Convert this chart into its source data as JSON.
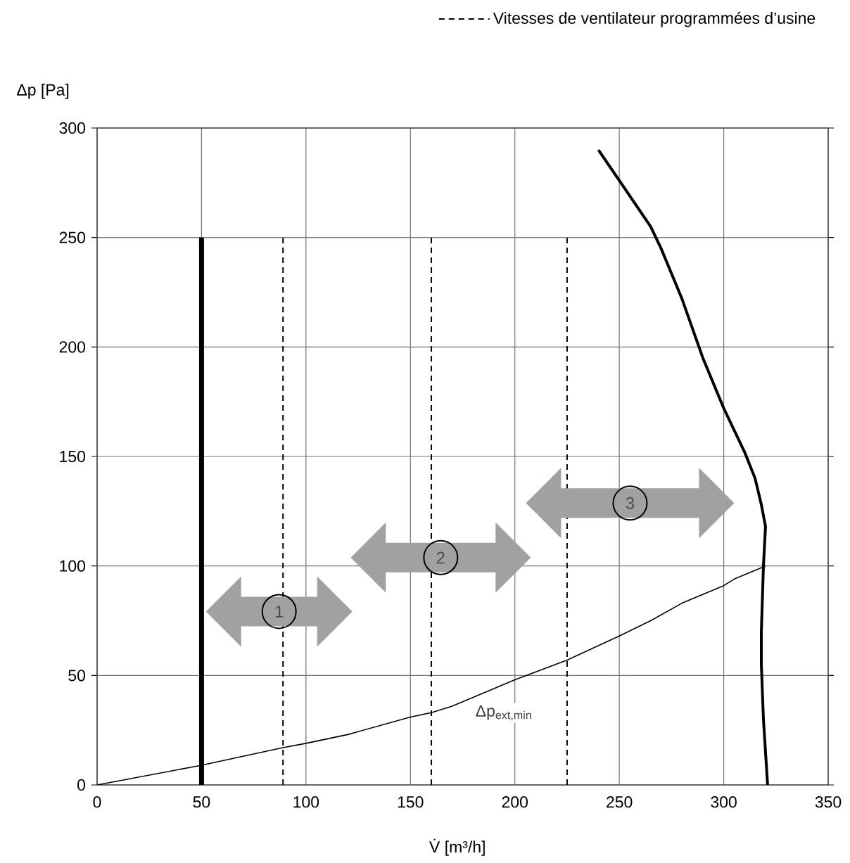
{
  "chart_data": {
    "type": "line",
    "xlabel": "V̇ [m³/h]",
    "ylabel": "Δp [Pa]",
    "xlim": [
      0,
      350
    ],
    "ylim": [
      0,
      300
    ],
    "xticks": [
      0,
      50,
      100,
      150,
      200,
      250,
      300,
      350
    ],
    "yticks": [
      0,
      50,
      100,
      150,
      200,
      250,
      300
    ],
    "grid": true,
    "legend": "top right",
    "annotations": [
      "1",
      "2",
      "3"
    ],
    "series": [
      {
        "color": "#000000",
        "x": [
          50,
          50
        ],
        "values": [
          0,
          250
        ]
      },
      {
        "color": "#000000",
        "x": [
          240,
          250,
          265,
          270,
          280,
          290,
          300,
          310,
          315,
          318,
          320,
          319,
          318,
          318,
          319,
          321
        ],
        "values": [
          290,
          276,
          255,
          245,
          222,
          195,
          172,
          152,
          140,
          128,
          118,
          100,
          70,
          55,
          30,
          0
        ]
      },
      {
        "name": "Δp$_{ext,min}$",
        "color": "#000000",
        "x": [
          0,
          50,
          89,
          100,
          120,
          150,
          160,
          170,
          180,
          200,
          225,
          250,
          265,
          280,
          300,
          305,
          320
        ],
        "values": [
          0,
          9,
          17,
          19,
          23,
          31,
          33,
          36,
          40,
          48,
          57,
          68,
          75,
          83,
          91,
          94,
          100
        ]
      },
      {
        "name": "Vitesses de ventilateur programmées d’usine",
        "color": "#000000",
        "line_style": "dashed",
        "x": [
          89,
          89,
          null,
          160,
          160,
          null,
          225,
          225
        ],
        "values": [
          0,
          250,
          null,
          0,
          250,
          null,
          0,
          250
        ]
      }
    ]
  }
}
